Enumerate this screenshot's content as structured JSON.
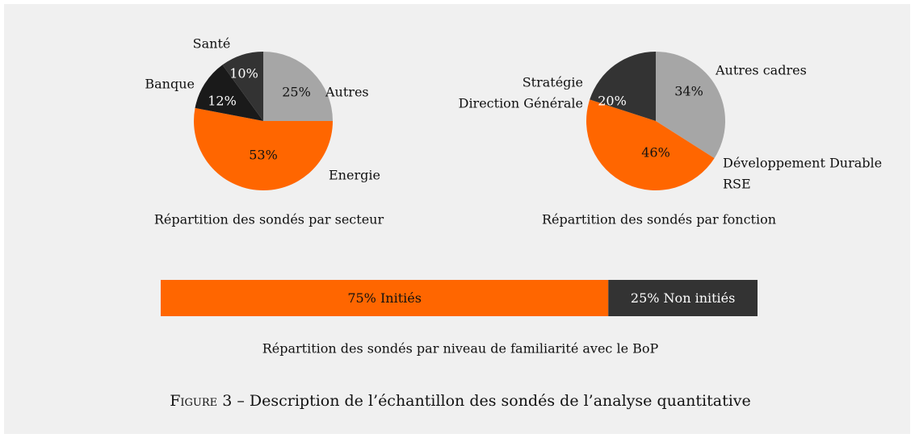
{
  "chart_data": [
    {
      "type": "pie",
      "title": "Répartition des sondés par secteur",
      "categories": [
        "Autres",
        "Energie",
        "Banque",
        "Santé"
      ],
      "values": [
        25,
        53,
        12,
        10
      ],
      "value_labels": [
        "25%",
        "53%",
        "12%",
        "10%"
      ],
      "colors": [
        "#a6a6a6",
        "#ff6600",
        "#1a1a1a",
        "#333333"
      ]
    },
    {
      "type": "pie",
      "title": "Répartition des sondés par fonction",
      "categories": [
        [
          "Autres cadres"
        ],
        [
          "Développement Durable",
          "RSE"
        ],
        [
          "Stratégie",
          "Direction Générale"
        ]
      ],
      "values": [
        34,
        46,
        20
      ],
      "value_labels": [
        "34%",
        "46%",
        "20%"
      ],
      "colors": [
        "#a6a6a6",
        "#ff6600",
        "#333333"
      ]
    },
    {
      "type": "stacked-bar",
      "title": "Répartition des sondés par niveau de familiarité avec le BoP",
      "categories": [
        "Initiés",
        "Non initiés"
      ],
      "values": [
        75,
        25
      ],
      "value_labels": [
        "75% Initiés",
        "25% Non initiés"
      ],
      "colors": [
        "#ff6600",
        "#333333"
      ]
    }
  ],
  "caption": {
    "label": "Figure 3",
    "text": "– Description de l’échantillon des sondés de l’analyse quantitative"
  }
}
